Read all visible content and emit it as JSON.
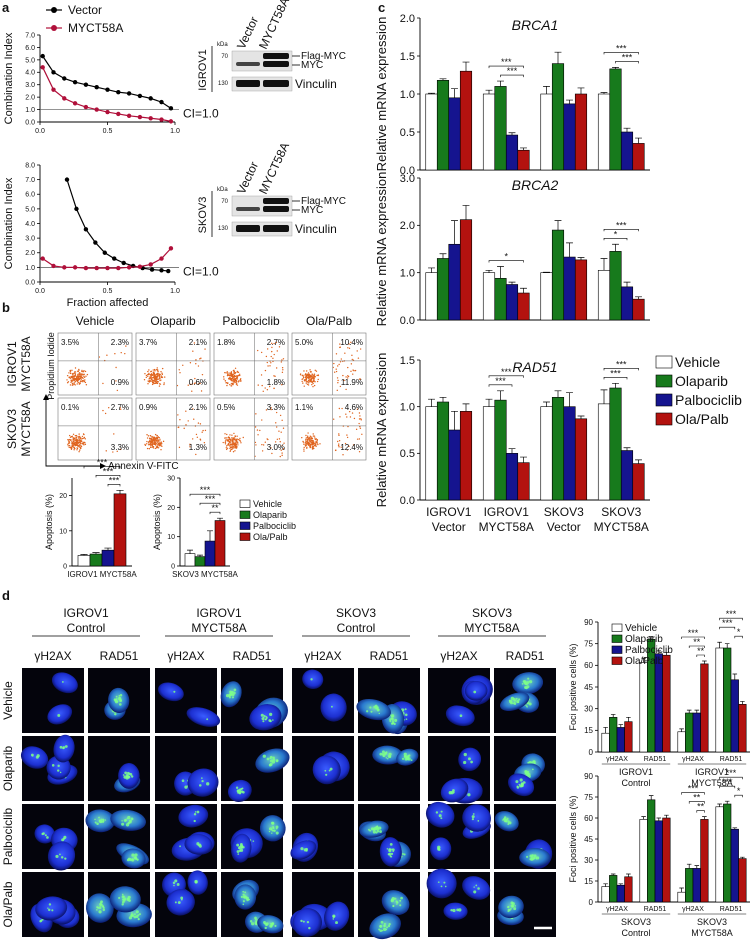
{
  "figure": {
    "panel_labels": [
      "a",
      "b",
      "c",
      "d"
    ],
    "blots": [
      {
        "cell_line": "IGROV1",
        "lanes": [
          "Vector",
          "MYCT58A"
        ],
        "kda_label": "kDa",
        "markers": [
          "70",
          "130"
        ],
        "bands": [
          "Flag-MYC",
          "MYC",
          "Vinculin"
        ]
      },
      {
        "cell_line": "SKOV3",
        "lanes": [
          "Vector",
          "MYCT58A"
        ],
        "kda_label": "kDa",
        "markers": [
          "70",
          "130"
        ],
        "bands": [
          "Flag-MYC",
          "MYC",
          "Vinculin"
        ]
      }
    ],
    "flow": {
      "columns": [
        "Vehicle",
        "Olaparib",
        "Palbociclib",
        "Ola/Palb"
      ],
      "rows": [
        [
          "IGROV1",
          "MYCT58A"
        ],
        [
          "SKOV3",
          "MYCT58A"
        ]
      ],
      "quadrants": [
        [
          [
            "3.5%",
            "2.3%",
            "0.9%"
          ],
          [
            "3.7%",
            "2.1%",
            "0.6%"
          ],
          [
            "1.8%",
            "2.7%",
            "1.8%"
          ],
          [
            "5.0%",
            "10.4%",
            "11.9%"
          ]
        ],
        [
          [
            "0.1%",
            "2.7%",
            "3.3%"
          ],
          [
            "0.9%",
            "2.1%",
            "1.3%"
          ],
          [
            "0.5%",
            "3.3%",
            "3.0%"
          ],
          [
            "1.1%",
            "4.6%",
            "12.4%"
          ]
        ]
      ],
      "y_label": "Propidium Iodide",
      "x_label": "Annexin V-FITC"
    },
    "microscopy": {
      "groups": [
        [
          "IGROV1",
          "Control"
        ],
        [
          "IGROV1",
          "MYCT58A"
        ],
        [
          "SKOV3",
          "Control"
        ],
        [
          "SKOV3",
          "MYCT58A"
        ]
      ],
      "stains": [
        "γH2AX",
        "RAD51"
      ],
      "rows": [
        "Vehicle",
        "Olaparib",
        "Palbociclib",
        "Ola/Palb"
      ]
    }
  },
  "chart_data": [
    {
      "type": "line",
      "y_label": "Combination Index",
      "xlim": [
        0,
        1
      ],
      "xticks": [
        {
          "value": 0,
          "label": "0.0"
        },
        {
          "value": 0.5,
          "label": "0.5"
        },
        {
          "value": 1,
          "label": "1.0"
        }
      ],
      "ylim": [
        0,
        7
      ],
      "yticks": [
        {
          "value": 0,
          "label": "0.0"
        },
        {
          "value": 1,
          "label": "1.0"
        },
        {
          "value": 2,
          "label": "2.0"
        },
        {
          "value": 3,
          "label": "3.0"
        },
        {
          "value": 4,
          "label": "4.0"
        },
        {
          "value": 5,
          "label": "5.0"
        },
        {
          "value": 6,
          "label": "6.0"
        },
        {
          "value": 7,
          "label": "7.0"
        }
      ],
      "reference_line": {
        "value": 1,
        "label": "CI=1.0"
      },
      "series": [
        {
          "name": "Vector",
          "color": "#000000",
          "x": [
            0.02,
            0.1,
            0.18,
            0.26,
            0.34,
            0.42,
            0.5,
            0.58,
            0.66,
            0.74,
            0.82,
            0.9,
            0.97
          ],
          "values": [
            5.3,
            4.0,
            3.5,
            3.2,
            3.0,
            2.8,
            2.6,
            2.4,
            2.3,
            2.1,
            1.9,
            1.6,
            1.1
          ]
        },
        {
          "name": "MYCT58A",
          "color": "#b0103a",
          "x": [
            0.02,
            0.1,
            0.18,
            0.26,
            0.34,
            0.42,
            0.5,
            0.58,
            0.66,
            0.74,
            0.82,
            0.9,
            0.97
          ],
          "values": [
            4.4,
            2.6,
            1.9,
            1.5,
            1.2,
            1.0,
            0.8,
            0.65,
            0.5,
            0.4,
            0.3,
            0.2,
            0.05
          ]
        }
      ]
    },
    {
      "type": "line",
      "y_label": "Combination Index",
      "x_label": "Fraction affected",
      "xlim": [
        0,
        1
      ],
      "xticks": [
        {
          "value": 0,
          "label": "0.0"
        },
        {
          "value": 0.5,
          "label": "0.5"
        },
        {
          "value": 1,
          "label": "1.0"
        }
      ],
      "ylim": [
        0,
        8
      ],
      "yticks": [
        {
          "value": 0,
          "label": "0.0"
        },
        {
          "value": 1,
          "label": "1.0"
        },
        {
          "value": 2,
          "label": "2.0"
        },
        {
          "value": 3,
          "label": "3.0"
        },
        {
          "value": 4,
          "label": "4.0"
        },
        {
          "value": 5,
          "label": "5.0"
        },
        {
          "value": 6,
          "label": "6.0"
        },
        {
          "value": 7,
          "label": "7.0"
        },
        {
          "value": 8,
          "label": "8.0"
        }
      ],
      "reference_line": {
        "value": 1,
        "label": "CI=1.0"
      },
      "series": [
        {
          "color": "#000000",
          "x": [
            0.2,
            0.27,
            0.34,
            0.41,
            0.48,
            0.55,
            0.62,
            0.69,
            0.76,
            0.83,
            0.9,
            0.95
          ],
          "values": [
            7.0,
            5.0,
            3.6,
            2.7,
            2.0,
            1.6,
            1.3,
            1.1,
            0.95,
            0.85,
            0.8,
            0.75
          ]
        },
        {
          "color": "#b0103a",
          "x": [
            0.02,
            0.1,
            0.18,
            0.26,
            0.34,
            0.42,
            0.5,
            0.58,
            0.66,
            0.74,
            0.82,
            0.9,
            0.97
          ],
          "values": [
            1.6,
            1.1,
            1.0,
            1.0,
            0.95,
            0.95,
            0.95,
            0.95,
            1.0,
            1.05,
            1.2,
            1.6,
            2.3
          ]
        }
      ]
    },
    {
      "type": "bar",
      "y_label": "Apoptosis (%)",
      "x_label": "IGROV1 MYCT58A",
      "ylim": [
        0,
        25
      ],
      "yticks": [
        0,
        10,
        20
      ],
      "series": [
        {
          "color": "#ffffff",
          "values": [
            3.0
          ],
          "errors": [
            0.3
          ]
        },
        {
          "color": "#177a1c",
          "values": [
            3.4
          ],
          "errors": [
            0.4
          ]
        },
        {
          "color": "#15148f",
          "values": [
            4.5
          ],
          "errors": [
            0.6
          ]
        },
        {
          "color": "#b3120f",
          "values": [
            20.5
          ],
          "errors": [
            1.0
          ]
        }
      ],
      "annotations": [
        "***",
        "***",
        "***"
      ]
    },
    {
      "type": "bar",
      "y_label": "Apoptosis (%)",
      "x_label": "SKOV3 MYCT58A",
      "ylim": [
        0,
        30
      ],
      "yticks": [
        0,
        10,
        20,
        30
      ],
      "series": [
        {
          "name": "Vehicle",
          "color": "#ffffff",
          "values": [
            4.2
          ],
          "errors": [
            1.2
          ]
        },
        {
          "name": "Olaparib",
          "color": "#177a1c",
          "values": [
            3.2
          ],
          "errors": [
            0.5
          ]
        },
        {
          "name": "Palbociclib",
          "color": "#15148f",
          "values": [
            8.5
          ],
          "errors": [
            3.5
          ]
        },
        {
          "name": "Ola/Palb",
          "color": "#b3120f",
          "values": [
            15.5
          ],
          "errors": [
            0.8
          ]
        }
      ],
      "annotations": [
        "***",
        "***",
        "**"
      ]
    },
    {
      "type": "bar",
      "title": "BRCA1",
      "y_label": "Relative mRNA expression",
      "ylim": [
        0,
        2
      ],
      "yticks": [
        {
          "value": 0,
          "label": "0.0"
        },
        {
          "value": 0.5,
          "label": "0.5"
        },
        {
          "value": 1,
          "label": "1.0"
        },
        {
          "value": 1.5,
          "label": "1.5"
        },
        {
          "value": 2,
          "label": "2.0"
        }
      ],
      "series": [
        {
          "color": "#ffffff",
          "values": [
            1.0,
            1.0,
            1.0,
            1.0
          ],
          "errors": [
            0.01,
            0.05,
            0.1,
            0.02
          ]
        },
        {
          "color": "#177a1c",
          "values": [
            1.18,
            1.1,
            1.4,
            1.33
          ],
          "errors": [
            0.02,
            0.07,
            0.15,
            0.02
          ]
        },
        {
          "color": "#15148f",
          "values": [
            0.95,
            0.46,
            0.87,
            0.5
          ],
          "errors": [
            0.12,
            0.03,
            0.05,
            0.05
          ]
        },
        {
          "color": "#b3120f",
          "values": [
            1.3,
            0.26,
            1.0,
            0.35
          ],
          "errors": [
            0.12,
            0.03,
            0.08,
            0.07
          ]
        }
      ],
      "annotations": [
        "***",
        "***",
        "***",
        "***"
      ]
    },
    {
      "type": "bar",
      "title": "BRCA2",
      "y_label": "Relative mRNA expression",
      "ylim": [
        0,
        3
      ],
      "yticks": [
        {
          "value": 0,
          "label": "0.0"
        },
        {
          "value": 1,
          "label": "1.0"
        },
        {
          "value": 2,
          "label": "2.0"
        },
        {
          "value": 3,
          "label": "3.0"
        }
      ],
      "series": [
        {
          "color": "#ffffff",
          "values": [
            1.0,
            1.0,
            1.0,
            1.05
          ],
          "errors": [
            0.1,
            0.05,
            0.01,
            0.25
          ]
        },
        {
          "color": "#177a1c",
          "values": [
            1.3,
            0.88,
            1.9,
            1.45
          ],
          "errors": [
            0.1,
            0.25,
            0.2,
            0.15
          ]
        },
        {
          "color": "#15148f",
          "values": [
            1.6,
            0.75,
            1.33,
            0.7
          ],
          "errors": [
            0.5,
            0.05,
            0.3,
            0.1
          ]
        },
        {
          "color": "#b3120f",
          "values": [
            2.12,
            0.57,
            1.27,
            0.44
          ],
          "errors": [
            0.3,
            0.1,
            0.05,
            0.05
          ]
        }
      ],
      "annotations": [
        "*",
        "***",
        "*"
      ]
    },
    {
      "type": "bar",
      "title": "RAD51",
      "y_label": "Relative mRNA expression",
      "categories": [
        [
          "IGROV1",
          "Vector"
        ],
        [
          "IGROV1",
          "MYCT58A"
        ],
        [
          "SKOV3",
          "Vector"
        ],
        [
          "SKOV3",
          "MYCT58A"
        ]
      ],
      "ylim": [
        0,
        1.5
      ],
      "yticks": [
        {
          "value": 0,
          "label": "0.0"
        },
        {
          "value": 0.5,
          "label": "0.5"
        },
        {
          "value": 1,
          "label": "1.0"
        },
        {
          "value": 1.5,
          "label": "1.5"
        }
      ],
      "series": [
        {
          "name": "Vehicle",
          "color": "#ffffff",
          "values": [
            1.0,
            1.0,
            1.0,
            1.03
          ],
          "errors": [
            0.08,
            0.08,
            0.05,
            0.15
          ]
        },
        {
          "name": "Olaparib",
          "color": "#177a1c",
          "values": [
            1.05,
            1.07,
            1.1,
            1.2
          ],
          "errors": [
            0.05,
            0.1,
            0.07,
            0.05
          ]
        },
        {
          "name": "Palbociclib",
          "color": "#15148f",
          "values": [
            0.75,
            0.5,
            1.0,
            0.53
          ],
          "errors": [
            0.2,
            0.05,
            0.15,
            0.03
          ]
        },
        {
          "name": "Ola/Palb",
          "color": "#b3120f",
          "values": [
            0.95,
            0.4,
            0.87,
            0.39
          ],
          "errors": [
            0.08,
            0.06,
            0.03,
            0.04
          ]
        }
      ],
      "annotations": [
        "***",
        "***",
        "***",
        "***"
      ]
    },
    {
      "type": "bar",
      "y_label": "Foci positive cells (%)",
      "categories": [
        "γH2AX",
        "RAD51",
        "γH2AX",
        "RAD51"
      ],
      "group_labels": [
        [
          "IGROV1",
          "Control"
        ],
        [
          "IGROV1",
          "MYCT58A"
        ]
      ],
      "ylim": [
        0,
        90
      ],
      "yticks": [
        0,
        15,
        30,
        45,
        60,
        75,
        90
      ],
      "series": [
        {
          "name": "Vehicle",
          "color": "#ffffff",
          "values": [
            13,
            62,
            14,
            72
          ],
          "errors": [
            4,
            3,
            2,
            4
          ]
        },
        {
          "name": "Olaparib",
          "color": "#177a1c",
          "values": [
            24,
            78,
            27,
            72
          ],
          "errors": [
            2,
            2,
            2,
            3
          ]
        },
        {
          "name": "Palbociclib",
          "color": "#15148f",
          "values": [
            17,
            68,
            27,
            50
          ],
          "errors": [
            2,
            2,
            2,
            4
          ]
        },
        {
          "name": "Ola/Palb",
          "color": "#b3120f",
          "values": [
            21,
            67,
            61,
            33
          ],
          "errors": [
            3,
            2,
            2,
            2
          ]
        }
      ],
      "annotations": [
        "***",
        "**",
        "**",
        "***",
        "***",
        "*"
      ]
    },
    {
      "type": "bar",
      "y_label": "Foci positive cells (%)",
      "categories": [
        "γH2AX",
        "RAD51",
        "γH2AX",
        "RAD51"
      ],
      "group_labels": [
        [
          "SKOV3",
          "Control"
        ],
        [
          "SKOV3",
          "MYCT58A"
        ]
      ],
      "ylim": [
        0,
        90
      ],
      "yticks": [
        0,
        15,
        30,
        45,
        60,
        75,
        90
      ],
      "series": [
        {
          "color": "#ffffff",
          "values": [
            11,
            59,
            7,
            68
          ],
          "errors": [
            2,
            2,
            3,
            2
          ]
        },
        {
          "color": "#177a1c",
          "values": [
            19,
            73,
            24,
            70
          ],
          "errors": [
            1,
            3,
            3,
            2
          ]
        },
        {
          "color": "#15148f",
          "values": [
            12,
            58,
            24,
            52
          ],
          "errors": [
            1,
            2,
            2,
            1
          ]
        },
        {
          "color": "#b3120f",
          "values": [
            18,
            60,
            59,
            31
          ],
          "errors": [
            2,
            2,
            2,
            1
          ]
        }
      ],
      "annotations": [
        "***",
        "**",
        "**",
        "***",
        "***",
        "*"
      ]
    }
  ]
}
